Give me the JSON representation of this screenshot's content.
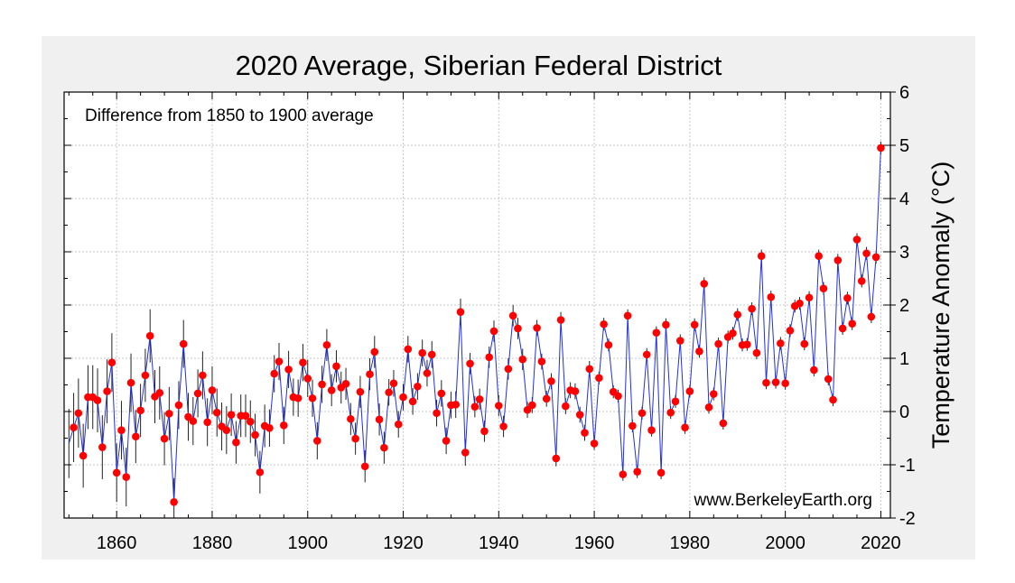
{
  "chart_data": {
    "type": "line",
    "title": "2020 Average, Siberian Federal District",
    "subtitle": "Difference from 1850 to 1900 average",
    "ylabel": "Temperature Anomaly (°C)",
    "xlabel": "",
    "watermark": "www.BerkeleyEarth.org",
    "xlim": [
      1849,
      2022
    ],
    "ylim": [
      -2,
      6
    ],
    "xticks": [
      1860,
      1880,
      1900,
      1920,
      1940,
      1960,
      1980,
      2000,
      2020
    ],
    "yticks": [
      -2,
      -1,
      0,
      1,
      2,
      3,
      4,
      5,
      6
    ],
    "grid": true,
    "y_axis_side": "right",
    "colors": {
      "line": "#2030e0",
      "marker": "#ff0000",
      "errorbar": "#222222",
      "panel": "#f0f0f0",
      "plot_bg": "#ffffff",
      "grid": "#c8c8c8"
    },
    "series": [
      {
        "x": [
          1850,
          1851,
          1852,
          1853,
          1854,
          1855,
          1856,
          1857,
          1858,
          1859,
          1860,
          1861,
          1862,
          1863,
          1864,
          1865,
          1866,
          1867,
          1868,
          1869,
          1870,
          1871,
          1872,
          1873,
          1874,
          1875,
          1876,
          1877,
          1878,
          1879,
          1880,
          1881,
          1882,
          1883,
          1884,
          1885,
          1886,
          1887,
          1888,
          1889,
          1890,
          1891,
          1892,
          1893,
          1894,
          1895,
          1896,
          1897,
          1898,
          1899,
          1900,
          1901,
          1902,
          1903,
          1904,
          1905,
          1906,
          1907,
          1908,
          1909,
          1910,
          1911,
          1912,
          1913,
          1914,
          1915,
          1916,
          1917,
          1918,
          1919,
          1920,
          1921,
          1922,
          1923,
          1924,
          1925,
          1926,
          1927,
          1928,
          1929,
          1930,
          1931,
          1932,
          1933,
          1934,
          1935,
          1936,
          1937,
          1938,
          1939,
          1940,
          1941,
          1942,
          1943,
          1944,
          1945,
          1946,
          1947,
          1948,
          1949,
          1950,
          1951,
          1952,
          1953,
          1954,
          1955,
          1956,
          1957,
          1958,
          1959,
          1960,
          1961,
          1962,
          1963,
          1964,
          1965,
          1966,
          1967,
          1968,
          1969,
          1970,
          1971,
          1972,
          1973,
          1974,
          1975,
          1976,
          1977,
          1978,
          1979,
          1980,
          1981,
          1982,
          1983,
          1984,
          1985,
          1986,
          1987,
          1988,
          1989,
          1990,
          1991,
          1992,
          1993,
          1994,
          1995,
          1996,
          1997,
          1998,
          1999,
          2000,
          2001,
          2002,
          2003,
          2004,
          2005,
          2006,
          2007,
          2008,
          2009,
          2010,
          2011,
          2012,
          2013,
          2014,
          2015,
          2016,
          2017,
          2018,
          2019,
          2020
        ],
        "y": [
          -0.6,
          -0.3,
          -0.03,
          -0.83,
          0.27,
          0.27,
          0.21,
          -0.67,
          0.38,
          0.92,
          -1.15,
          -0.35,
          -1.23,
          0.54,
          -0.47,
          0.02,
          0.68,
          1.42,
          0.28,
          0.35,
          -0.51,
          -0.04,
          -1.7,
          0.12,
          1.27,
          -0.1,
          -0.18,
          0.34,
          0.68,
          -0.2,
          0.4,
          -0.02,
          -0.28,
          -0.35,
          -0.06,
          -0.58,
          -0.08,
          -0.08,
          -0.19,
          -0.44,
          -1.14,
          -0.27,
          -0.31,
          0.71,
          0.94,
          -0.26,
          0.79,
          0.27,
          0.25,
          0.92,
          0.62,
          0.25,
          -0.55,
          0.51,
          1.25,
          0.4,
          0.85,
          0.45,
          0.52,
          -0.14,
          -0.51,
          0.37,
          -1.03,
          0.7,
          1.12,
          -0.15,
          -0.68,
          0.36,
          0.53,
          -0.24,
          0.27,
          1.17,
          0.19,
          0.47,
          1.1,
          0.72,
          1.07,
          -0.03,
          0.34,
          -0.55,
          0.12,
          0.13,
          1.87,
          -0.77,
          0.9,
          0.09,
          0.23,
          -0.37,
          1.02,
          1.51,
          0.11,
          -0.28,
          0.8,
          1.8,
          1.56,
          0.98,
          0.03,
          0.12,
          1.57,
          0.94,
          0.24,
          0.57,
          -0.88,
          1.72,
          0.1,
          0.4,
          0.38,
          -0.06,
          -0.4,
          0.8,
          -0.6,
          0.63,
          1.64,
          1.25,
          0.37,
          0.29,
          -1.18,
          1.8,
          -0.27,
          -1.13,
          -0.03,
          1.07,
          -0.35,
          1.48,
          -1.15,
          1.63,
          -0.02,
          0.19,
          1.33,
          -0.3,
          0.38,
          1.63,
          1.13,
          2.4,
          0.08,
          0.33,
          1.27,
          -0.22,
          1.4,
          1.47,
          1.82,
          1.25,
          1.26,
          1.93,
          1.1,
          2.92,
          0.54,
          2.15,
          0.55,
          1.28,
          0.53,
          1.52,
          1.98,
          2.03,
          1.27,
          2.14,
          0.78,
          2.92,
          2.31,
          0.61,
          0.22,
          2.84,
          1.56,
          2.13,
          1.65,
          3.23,
          2.45,
          2.97,
          1.78,
          2.9,
          4.95
        ],
        "err": [
          0.65,
          0.65,
          0.65,
          0.6,
          0.6,
          0.6,
          0.6,
          0.6,
          0.6,
          0.55,
          0.55,
          0.55,
          0.55,
          0.55,
          0.5,
          0.5,
          0.5,
          0.5,
          0.5,
          0.5,
          0.5,
          0.5,
          0.45,
          0.45,
          0.45,
          0.45,
          0.45,
          0.45,
          0.45,
          0.45,
          0.45,
          0.45,
          0.45,
          0.45,
          0.4,
          0.4,
          0.4,
          0.4,
          0.4,
          0.4,
          0.4,
          0.4,
          0.35,
          0.35,
          0.35,
          0.35,
          0.35,
          0.35,
          0.35,
          0.35,
          0.35,
          0.35,
          0.35,
          0.35,
          0.3,
          0.3,
          0.3,
          0.3,
          0.3,
          0.3,
          0.3,
          0.3,
          0.3,
          0.3,
          0.3,
          0.3,
          0.3,
          0.25,
          0.25,
          0.25,
          0.25,
          0.25,
          0.25,
          0.25,
          0.25,
          0.25,
          0.25,
          0.25,
          0.25,
          0.25,
          0.25,
          0.25,
          0.25,
          0.25,
          0.2,
          0.2,
          0.2,
          0.2,
          0.2,
          0.2,
          0.2,
          0.2,
          0.2,
          0.2,
          0.2,
          0.2,
          0.15,
          0.15,
          0.15,
          0.15,
          0.15,
          0.15,
          0.15,
          0.15,
          0.15,
          0.15,
          0.15,
          0.15,
          0.15,
          0.15,
          0.12,
          0.12,
          0.12,
          0.12,
          0.12,
          0.12,
          0.12,
          0.12,
          0.12,
          0.12,
          0.12,
          0.12,
          0.12,
          0.12,
          0.12,
          0.12,
          0.12,
          0.12,
          0.12,
          0.12,
          0.12,
          0.12,
          0.12,
          0.12,
          0.12,
          0.12,
          0.12,
          0.12,
          0.12,
          0.12,
          0.12,
          0.12,
          0.12,
          0.12,
          0.12,
          0.12,
          0.12,
          0.12,
          0.12,
          0.12,
          0.12,
          0.12,
          0.12,
          0.12,
          0.12,
          0.12,
          0.12,
          0.12,
          0.12,
          0.12,
          0.12,
          0.12,
          0.12,
          0.12,
          0.12,
          0.12,
          0.12,
          0.12,
          0.12,
          0.12,
          0.12
        ]
      }
    ]
  }
}
